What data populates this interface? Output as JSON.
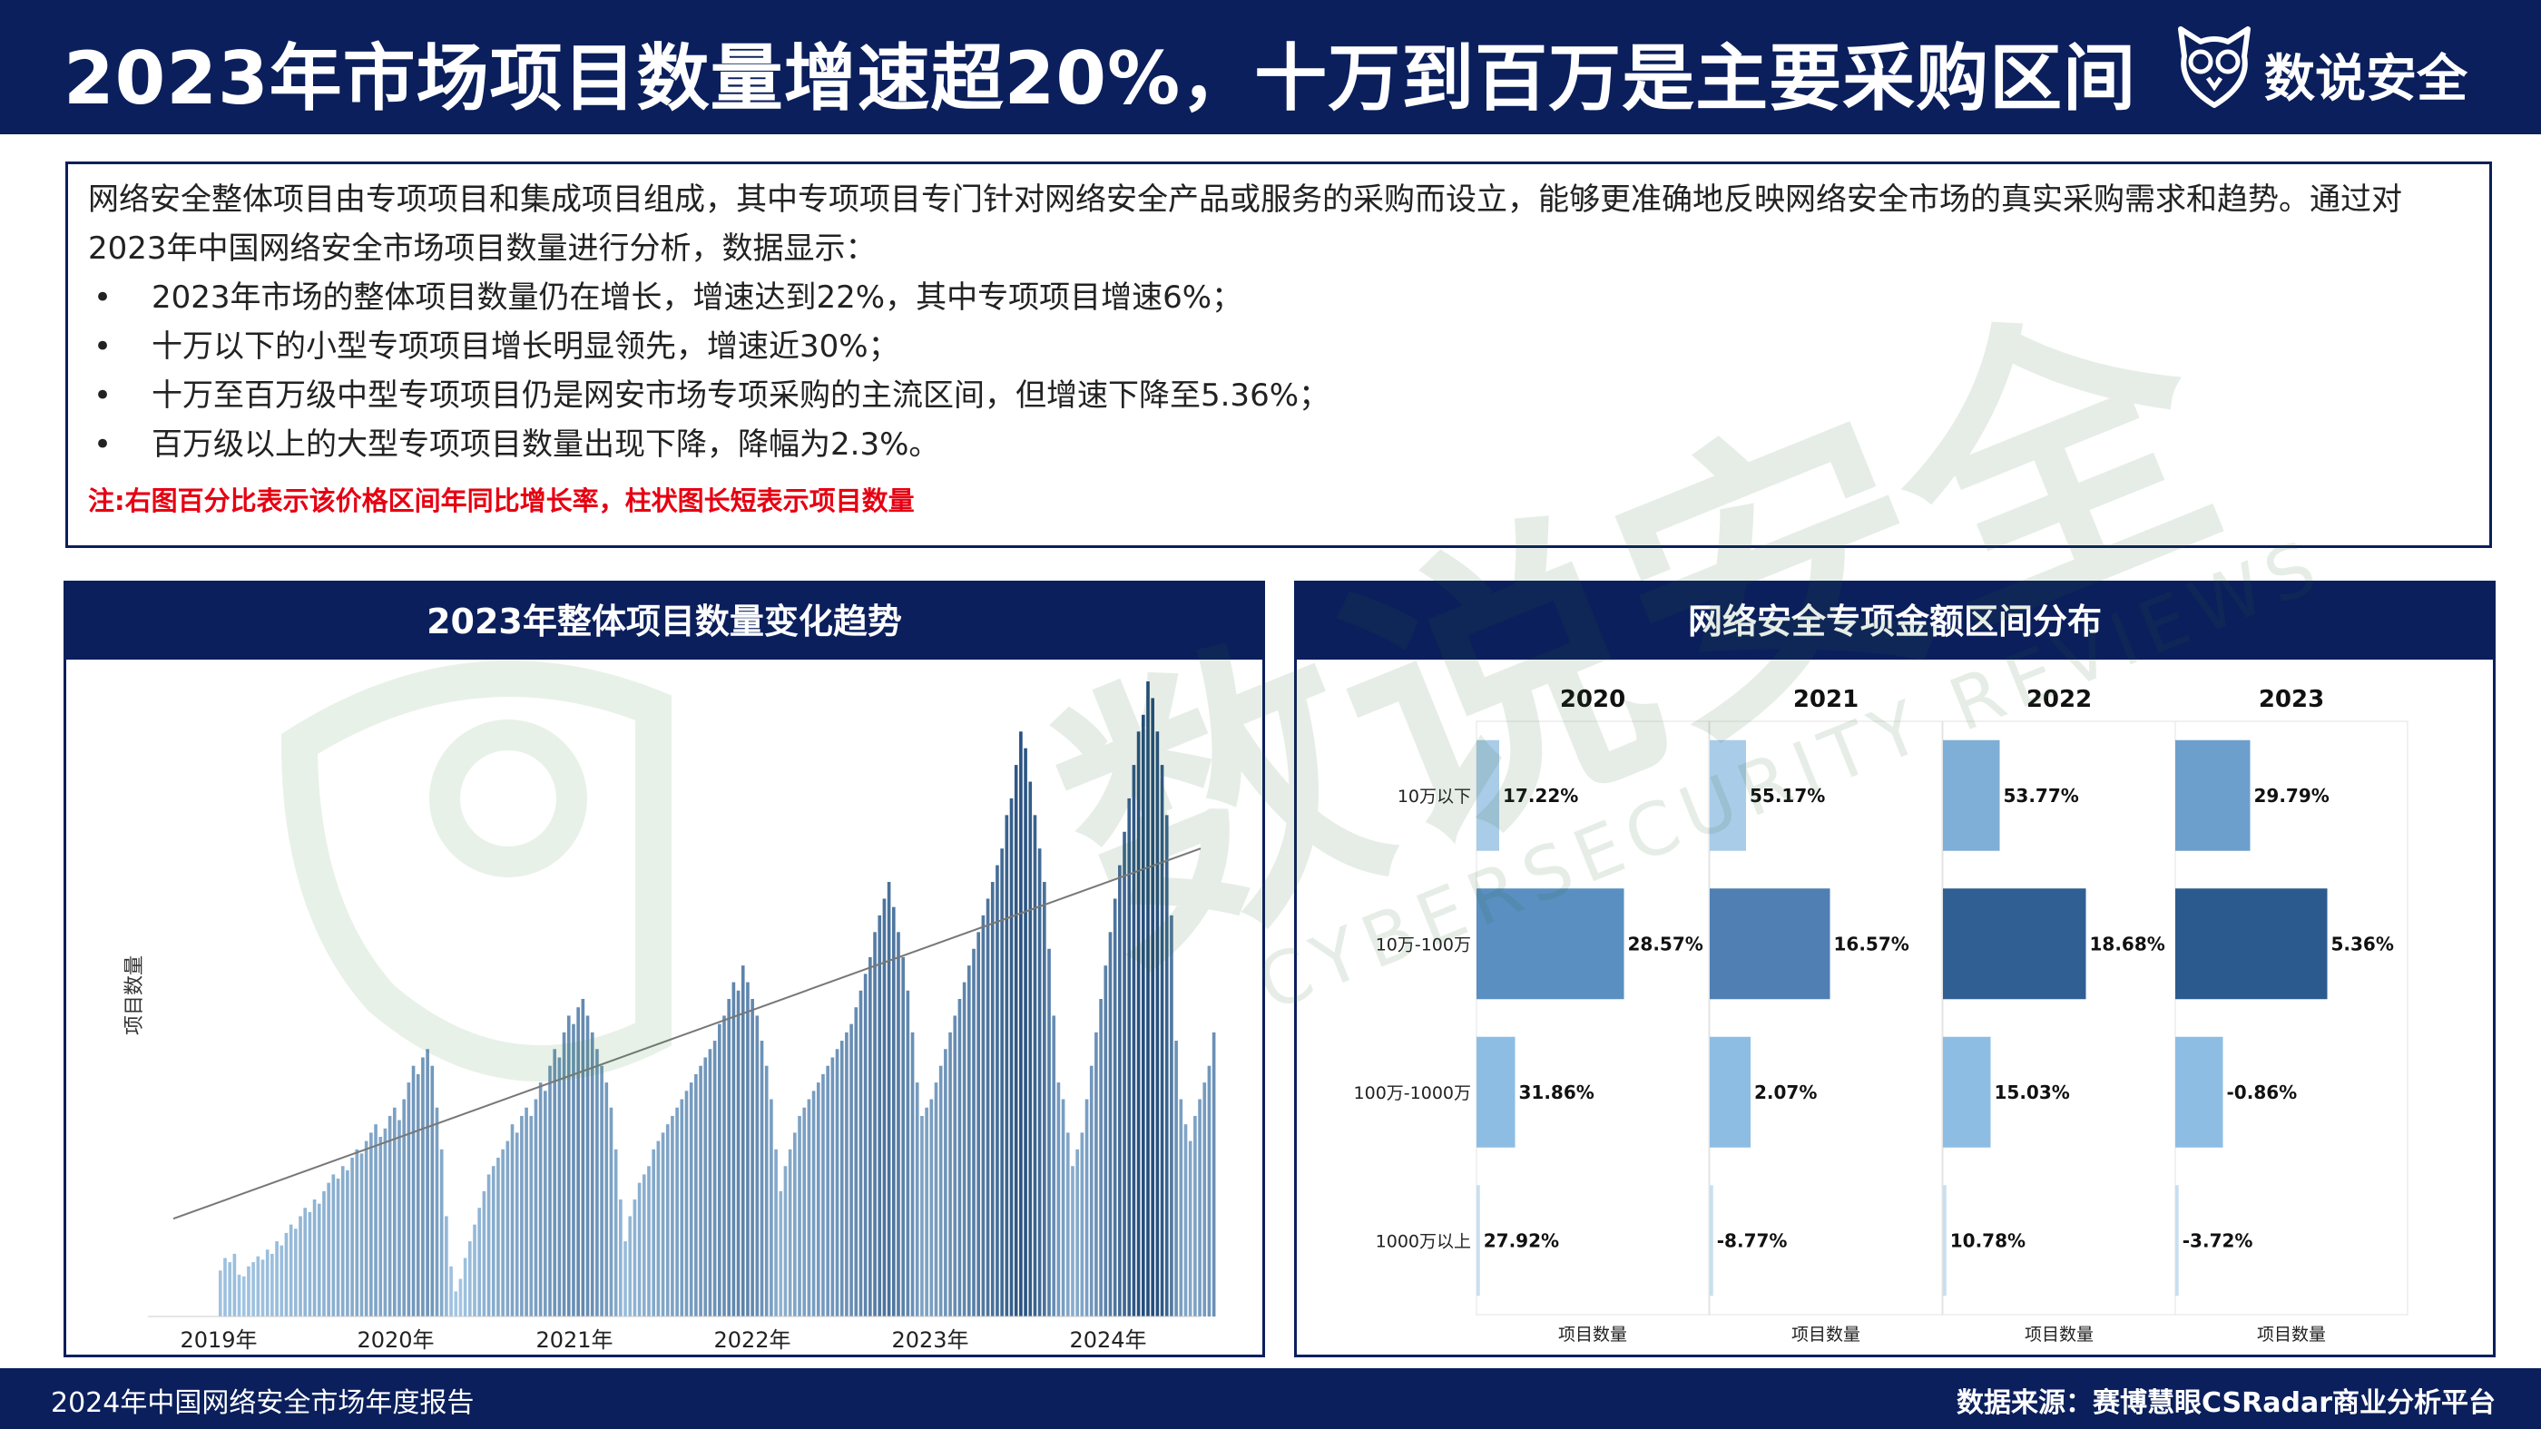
{
  "header": {
    "title": "2023年市场项目数量增速超20%，十万到百万是主要采购区间",
    "brand_name": "数说安全",
    "brand_icon": "owl-logo-icon"
  },
  "intro": {
    "paragraph": "网络安全整体项目由专项项目和集成项目组成，其中专项项目专门针对网络安全产品或服务的采购而设立，能够更准确地反映网络安全市场的真实采购需求和趋势。通过对2023年中国网络安全市场项目数量进行分析，数据显示：",
    "bullet_marker": "•",
    "bullets": [
      "2023年市场的整体项目数量仍在增长，增速达到22%，其中专项项目增速6%；",
      "十万以下的小型专项项目增长明显领先，增速近30%；",
      "十万至百万级中型专项项目仍是网安市场专项采购的主流区间，但增速下降至5.36%；",
      "百万级以上的大型专项项目数量出现下降，降幅为2.3%。"
    ],
    "note": "注:右图百分比表示该价格区间年同比增长率，柱状图长短表示项目数量"
  },
  "watermark": {
    "text": "数说安全",
    "subtext": "CYBERSECURITY REVIEWS"
  },
  "left_panel": {
    "title": "2023年整体项目数量变化趋势"
  },
  "right_panel": {
    "title": "网络安全专项金额区间分布"
  },
  "chart_data": [
    {
      "type": "bar",
      "title": "2023年整体项目数量变化趋势",
      "ylabel": "项目数量",
      "xlabel": "",
      "x_tick_labels": [
        "2019年",
        "2020年",
        "2021年",
        "2022年",
        "2023年",
        "2024年"
      ],
      "y_axis_ticks_shown": false,
      "grid": false,
      "trendline": {
        "type": "linear",
        "start_value": 117,
        "end_value": 560
      },
      "x_unit": "week index (approx., 2019-03 to 2024-02)",
      "colors": {
        "light": "#a9cce8",
        "dark": "#244d7d",
        "trend": "#777777"
      },
      "values": [
        55,
        70,
        65,
        75,
        50,
        48,
        60,
        65,
        72,
        68,
        80,
        75,
        90,
        85,
        100,
        110,
        105,
        120,
        130,
        125,
        140,
        135,
        150,
        160,
        170,
        165,
        180,
        175,
        190,
        200,
        195,
        210,
        220,
        230,
        215,
        225,
        240,
        250,
        235,
        260,
        280,
        300,
        290,
        310,
        320,
        300,
        250,
        200,
        120,
        60,
        30,
        45,
        70,
        90,
        110,
        130,
        150,
        170,
        180,
        190,
        200,
        210,
        230,
        220,
        240,
        250,
        240,
        260,
        280,
        270,
        300,
        320,
        310,
        340,
        360,
        350,
        370,
        380,
        360,
        340,
        320,
        300,
        280,
        250,
        200,
        140,
        90,
        120,
        140,
        160,
        170,
        180,
        200,
        210,
        220,
        230,
        240,
        250,
        260,
        270,
        280,
        290,
        300,
        310,
        320,
        330,
        350,
        360,
        380,
        400,
        390,
        420,
        400,
        380,
        360,
        330,
        300,
        260,
        200,
        150,
        180,
        200,
        220,
        240,
        250,
        260,
        270,
        280,
        290,
        300,
        310,
        320,
        330,
        340,
        350,
        370,
        390,
        410,
        430,
        460,
        480,
        500,
        520,
        490,
        460,
        430,
        390,
        340,
        280,
        240,
        250,
        260,
        280,
        300,
        320,
        340,
        360,
        380,
        400,
        420,
        440,
        460,
        480,
        500,
        520,
        540,
        560,
        600,
        620,
        660,
        700,
        680,
        640,
        600,
        560,
        520,
        440,
        360,
        280,
        260,
        220,
        180,
        200,
        220,
        260,
        300,
        340,
        380,
        420,
        460,
        500,
        540,
        580,
        620,
        660,
        700,
        720,
        760,
        740,
        700,
        660,
        600,
        480,
        330,
        260,
        230,
        210,
        240,
        260,
        280,
        300,
        340
      ],
      "uncertain": true
    },
    {
      "type": "bar",
      "orientation": "horizontal",
      "title": "网络安全专项金额区间分布",
      "note": "百分比表示该价格区间年同比增长率，柱状图长短表示项目数量",
      "categories": [
        "10万以下",
        "10万-100万",
        "100万-1000万",
        "1000万以上"
      ],
      "facets": [
        "2020",
        "2021",
        "2022",
        "2023"
      ],
      "xlabel": "项目数量",
      "bar_length_scale": "relative project count (not printed on axis)",
      "panels": [
        {
          "year": "2020",
          "bar_lengths": [
            10,
            65,
            17,
            1.5
          ],
          "growth_labels": [
            "17.22%",
            "28.57%",
            "31.86%",
            "27.92%"
          ]
        },
        {
          "year": "2021",
          "bar_lengths": [
            16,
            53,
            18,
            1.5
          ],
          "growth_labels": [
            "55.17%",
            "16.57%",
            "2.07%",
            "-8.77%"
          ]
        },
        {
          "year": "2022",
          "bar_lengths": [
            25,
            63,
            21,
            1.5
          ],
          "growth_labels": [
            "53.77%",
            "18.68%",
            "15.03%",
            "10.78%"
          ]
        },
        {
          "year": "2023",
          "bar_lengths": [
            33,
            67,
            21,
            1.5
          ],
          "growth_labels": [
            "29.79%",
            "5.36%",
            "-0.86%",
            "-3.72%"
          ]
        }
      ],
      "colors": {
        "small": "#a9cce8",
        "mid_light": "#5a8fc2",
        "mid_dark": "#2f5f93",
        "large": "#8ebde4"
      }
    }
  ],
  "footer": {
    "left": "2024年中国网络安全市场年度报告",
    "right": "数据来源：赛博慧眼CSRadar商业分析平台"
  }
}
